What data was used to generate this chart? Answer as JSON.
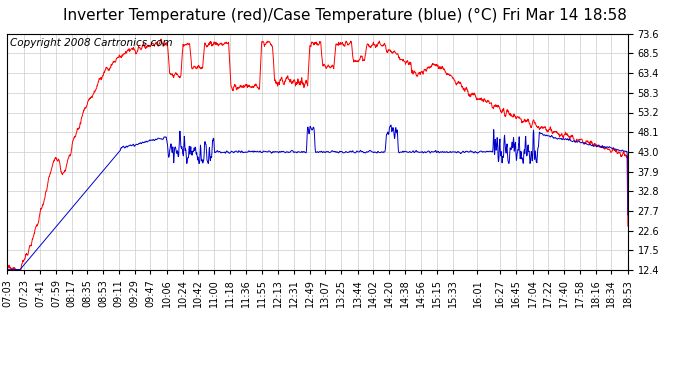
{
  "title": "Inverter Temperature (red)/Case Temperature (blue) (°C) Fri Mar 14 18:58",
  "copyright": "Copyright 2008 Cartronics.com",
  "background_color": "#ffffff",
  "plot_background": "#ffffff",
  "grid_color": "#cccccc",
  "red_color": "#ff0000",
  "blue_color": "#0000cc",
  "ylim": [
    12.4,
    73.6
  ],
  "yticks": [
    12.4,
    17.5,
    22.6,
    27.7,
    32.8,
    37.9,
    43.0,
    48.1,
    53.2,
    58.3,
    63.4,
    68.5,
    73.6
  ],
  "x_labels": [
    "07:03",
    "07:23",
    "07:41",
    "07:59",
    "08:17",
    "08:35",
    "08:53",
    "09:11",
    "09:29",
    "09:47",
    "10:06",
    "10:24",
    "10:42",
    "11:00",
    "11:18",
    "11:36",
    "11:55",
    "12:13",
    "12:31",
    "12:49",
    "13:07",
    "13:25",
    "13:44",
    "14:02",
    "14:20",
    "14:38",
    "14:56",
    "15:15",
    "15:33",
    "16:01",
    "16:27",
    "16:45",
    "17:04",
    "17:22",
    "17:40",
    "17:58",
    "18:16",
    "18:34",
    "18:53"
  ],
  "title_fontsize": 11,
  "copyright_fontsize": 7.5,
  "tick_fontsize": 7
}
